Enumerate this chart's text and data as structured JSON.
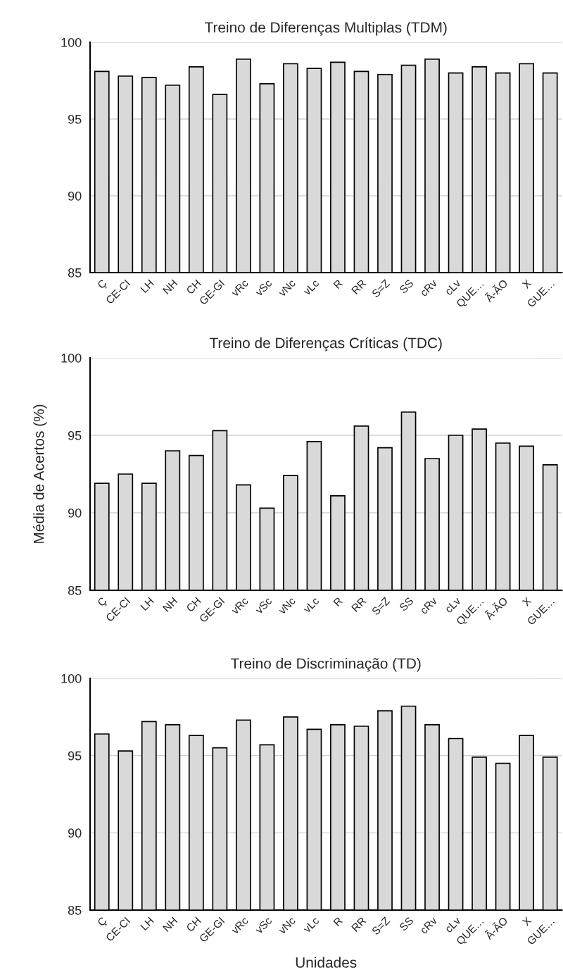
{
  "chart_data": [
    {
      "type": "bar",
      "title": "Treino de Diferenças Multiplas (TDM)",
      "categories": [
        "Ç",
        "CE-CI",
        "LH",
        "NH",
        "CH",
        "GE-GI",
        "vRc",
        "vSc",
        "vNc",
        "vLc",
        "R",
        "RR",
        "S=Z",
        "SS",
        "cRv",
        "cLv",
        "QUE…",
        "Ã-ÃO",
        "X",
        "GUE…"
      ],
      "values": [
        98.1,
        97.8,
        97.7,
        97.2,
        98.4,
        96.6,
        98.9,
        97.3,
        98.6,
        98.3,
        98.7,
        98.1,
        97.9,
        98.5,
        98.9,
        98.0,
        98.4,
        98.0,
        98.6,
        98.0
      ],
      "color": "#d9d9d9",
      "ylim": [
        85,
        100
      ],
      "yticks": [
        85,
        90,
        95,
        100
      ],
      "grid": "y"
    },
    {
      "type": "bar",
      "title": "Treino de Diferenças Críticas (TDC)",
      "ylabel": "Média de Acertos (%)",
      "categories": [
        "Ç",
        "CE-CI",
        "LH",
        "NH",
        "CH",
        "GE-GI",
        "vRc",
        "vSc",
        "vNc",
        "vLc",
        "R",
        "RR",
        "S=Z",
        "SS",
        "cRv",
        "cLv",
        "QUE…",
        "Ã-ÃO",
        "X",
        "GUE…"
      ],
      "values": [
        91.9,
        92.5,
        91.9,
        94.0,
        93.7,
        95.3,
        91.8,
        90.3,
        92.4,
        94.6,
        91.1,
        95.6,
        94.2,
        96.5,
        93.5,
        95.0,
        95.4,
        94.5,
        94.3,
        93.1
      ],
      "color": "#d9d9d9",
      "ylim": [
        85,
        100
      ],
      "yticks": [
        85,
        90,
        95,
        100
      ],
      "grid": "y"
    },
    {
      "type": "bar",
      "title": "Treino de Discriminação (TD)",
      "xlabel": "Unidades",
      "categories": [
        "Ç",
        "CE-CI",
        "LH",
        "NH",
        "CH",
        "GE-GI",
        "vRc",
        "vSc",
        "vNc",
        "vLc",
        "R",
        "RR",
        "S=Z",
        "SS",
        "cRv",
        "cLv",
        "QUE…",
        "Ã-ÃO",
        "X",
        "GUE…"
      ],
      "values": [
        96.4,
        95.3,
        97.2,
        97.0,
        96.3,
        95.5,
        97.3,
        95.7,
        97.5,
        96.7,
        97.0,
        96.9,
        97.9,
        98.2,
        97.0,
        96.1,
        94.9,
        94.5,
        96.3,
        94.9
      ],
      "color": "#d9d9d9",
      "ylim": [
        85,
        100
      ],
      "yticks": [
        85,
        90,
        95,
        100
      ],
      "grid": "y"
    }
  ]
}
